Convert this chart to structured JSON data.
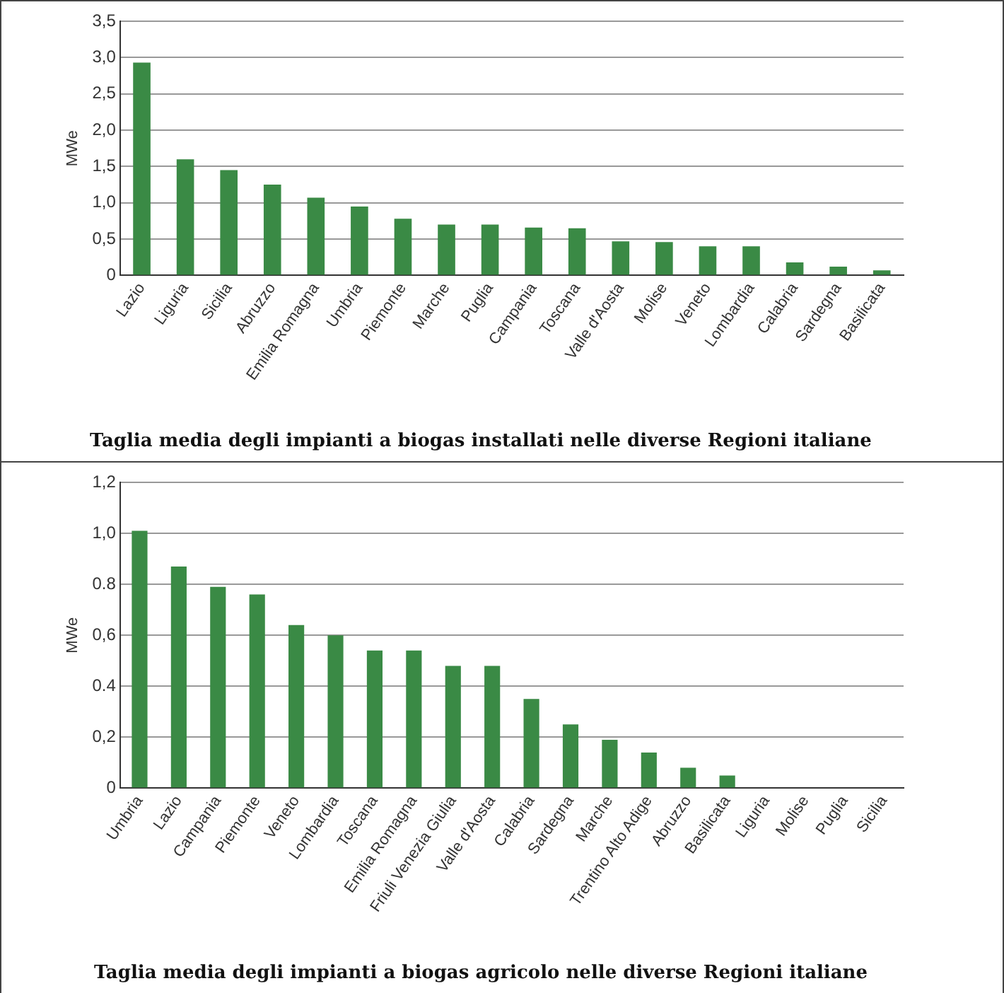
{
  "chart_data": [
    {
      "type": "bar",
      "title": "Taglia media degli impianti a biogas installati nelle diverse Regioni italiane",
      "ylabel": "MWe",
      "categories": [
        "Lazio",
        "Liguria",
        "Sicilia",
        "Abruzzo",
        "Emilia Romagna",
        "Umbria",
        "Piemonte",
        "Marche",
        "Puglia",
        "Campania",
        "Toscana",
        "Valle d'Aosta",
        "Molise",
        "Veneto",
        "Lombardia",
        "Calabria",
        "Sardegna",
        "Basilicata"
      ],
      "values": [
        2.93,
        1.6,
        1.45,
        1.25,
        1.07,
        0.95,
        0.78,
        0.7,
        0.7,
        0.66,
        0.65,
        0.47,
        0.46,
        0.4,
        0.4,
        0.18,
        0.12,
        0.07
      ],
      "color": "#3a8a45",
      "ylim": [
        0,
        3.5
      ],
      "yticks": [
        {
          "value": 0,
          "label": "0"
        },
        {
          "value": 0.5,
          "label": "0,5"
        },
        {
          "value": 1,
          "label": "1,0"
        },
        {
          "value": 1.5,
          "label": "1,5"
        },
        {
          "value": 2,
          "label": "2,0"
        },
        {
          "value": 2.5,
          "label": "2,5"
        },
        {
          "value": 3,
          "label": "3,0"
        },
        {
          "value": 3.5,
          "label": "3,5"
        }
      ],
      "grid": "y",
      "legend": false
    },
    {
      "type": "bar",
      "title": "Taglia media degli impianti a biogas agricolo nelle diverse Regioni italiane",
      "ylabel": "MWe",
      "categories": [
        "Umbria",
        "Lazio",
        "Campania",
        "Piemonte",
        "Veneto",
        "Lombardia",
        "Toscana",
        "Emilia Romagna",
        "Friuli Venezia Giulia",
        "Valle d'Aosta",
        "Calabria",
        "Sardegna",
        "Marche",
        "Trentino Alto Adige",
        "Abruzzo",
        "Basilicata",
        "Liguria",
        "Molise",
        "Puglia",
        "Sicilia"
      ],
      "values": [
        1.01,
        0.87,
        0.79,
        0.76,
        0.64,
        0.6,
        0.54,
        0.54,
        0.48,
        0.48,
        0.35,
        0.25,
        0.19,
        0.14,
        0.08,
        0.05,
        0,
        0,
        0,
        0
      ],
      "color": "#3a8a45",
      "ylim": [
        0,
        1.2
      ],
      "yticks": [
        {
          "value": 0,
          "label": "0"
        },
        {
          "value": 0.2,
          "label": "0,2"
        },
        {
          "value": 0.4,
          "label": "0.4"
        },
        {
          "value": 0.6,
          "label": "0,6"
        },
        {
          "value": 0.8,
          "label": "0.8"
        },
        {
          "value": 1,
          "label": "1,0"
        },
        {
          "value": 1.2,
          "label": "1,2"
        }
      ],
      "grid": "y",
      "legend": false
    }
  ]
}
